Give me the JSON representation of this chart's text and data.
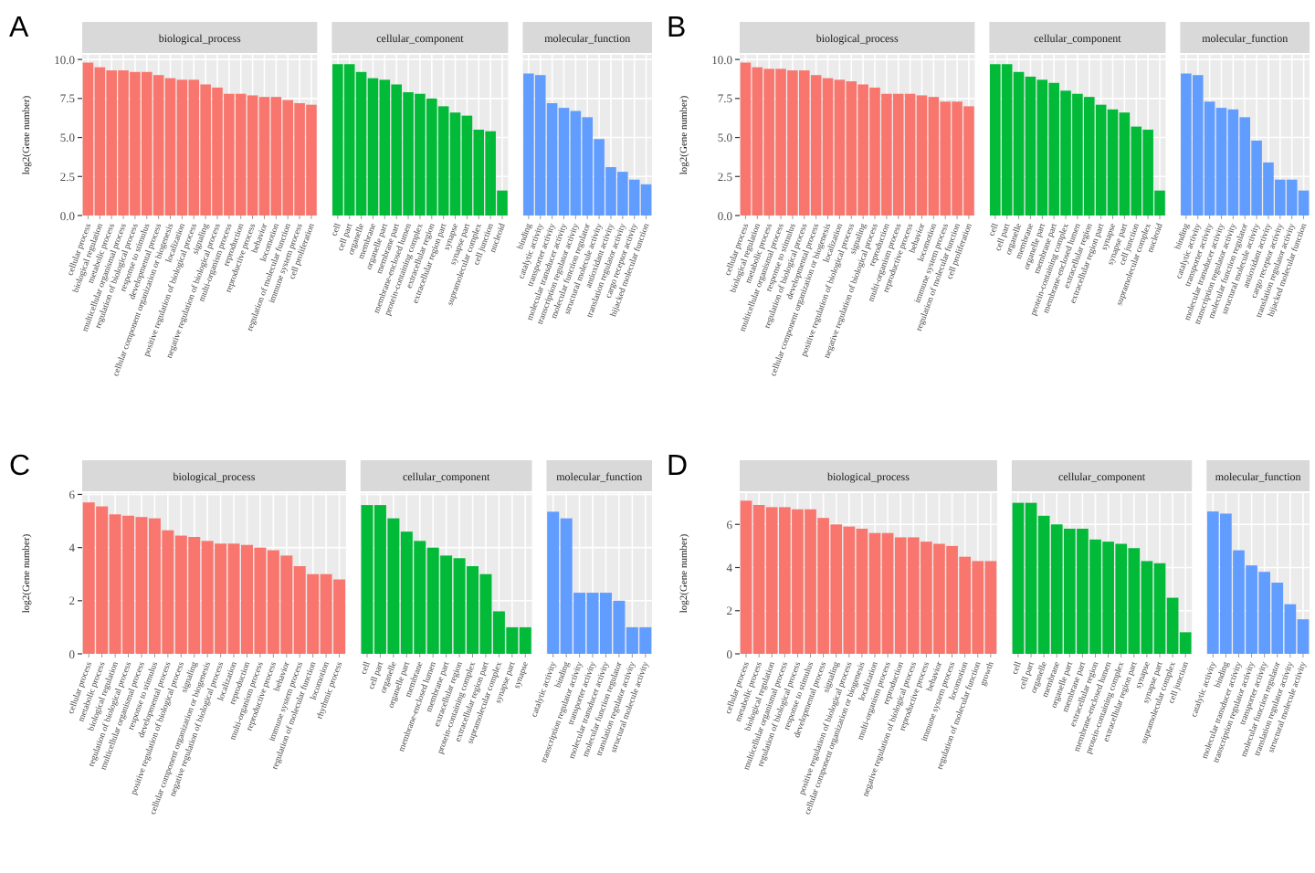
{
  "chart_data": [
    {
      "type": "bar",
      "title": "biological_process",
      "ylabel": "log2(Gene number)",
      "annotations": [
        "A"
      ],
      "color": "#f8766d",
      "grid": true,
      "ylim": [
        0,
        10.3
      ],
      "yticks": [
        {
          "value": 0,
          "label": "0.0"
        },
        {
          "value": 2.5,
          "label": "2.5"
        },
        {
          "value": 5,
          "label": "5.0"
        },
        {
          "value": 7.5,
          "label": "7.5"
        },
        {
          "value": 10,
          "label": "10.0"
        }
      ],
      "categories": [
        "cellular process",
        "biological regulation",
        "metabolic process",
        "multicellular organismal process",
        "regulation of biological process",
        "response to stimulus",
        "developmental process",
        "cellular component organization or biogenesis",
        "localization",
        "positive regulation of biological process",
        "signaling",
        "negative regulation of biological process",
        "multi-organism process",
        "reproduction",
        "reproductive process",
        "behavior",
        "locomotion",
        "regulation of molecular function",
        "immune system process",
        "cell proliferation"
      ],
      "values": [
        9.8,
        9.5,
        9.3,
        9.3,
        9.2,
        9.2,
        9.0,
        8.8,
        8.7,
        8.7,
        8.4,
        8.2,
        7.8,
        7.8,
        7.7,
        7.6,
        7.6,
        7.4,
        7.2,
        7.1
      ]
    },
    {
      "type": "bar",
      "title": "cellular_component",
      "color": "#00ba38",
      "grid": true,
      "tick_labels": "x",
      "ylim": [
        0,
        10.3
      ],
      "yticks": [
        0,
        2.5,
        5,
        7.5,
        10
      ],
      "categories": [
        "cell",
        "cell part",
        "organelle",
        "membrane",
        "organelle part",
        "membrane part",
        "membrane-enclosed lumen",
        "protein-containing complex",
        "extracellular region",
        "extracellular region part",
        "synapse",
        "synapse part",
        "supramolecular complex",
        "cell junction",
        "nucleoid"
      ],
      "values": [
        9.7,
        9.7,
        9.2,
        8.8,
        8.7,
        8.4,
        7.9,
        7.8,
        7.5,
        7.0,
        6.6,
        6.4,
        5.5,
        5.4,
        1.6
      ]
    },
    {
      "type": "bar",
      "title": "molecular_function",
      "color": "#619cff",
      "grid": true,
      "tick_labels": "x",
      "ylim": [
        0,
        10.3
      ],
      "yticks": [
        0,
        2.5,
        5,
        7.5,
        10
      ],
      "categories": [
        "binding",
        "catalytic activity",
        "transporter activity",
        "molecular transducer activity",
        "transcription regulator activity",
        "molecular function regulator",
        "structural molecule activity",
        "antioxidant activity",
        "translation regulator activity",
        "cargo receptor activity",
        "hijacked molecular function"
      ],
      "values": [
        9.1,
        9.0,
        7.2,
        6.9,
        6.7,
        6.3,
        4.9,
        3.1,
        2.8,
        2.3,
        2.0
      ]
    },
    {
      "type": "bar",
      "title": "biological_process",
      "ylabel": "log2(Gene number)",
      "annotations": [
        "B"
      ],
      "color": "#f8766d",
      "grid": true,
      "ylim": [
        0,
        10.3
      ],
      "yticks": [
        {
          "value": 0,
          "label": "0.0"
        },
        {
          "value": 2.5,
          "label": "2.5"
        },
        {
          "value": 5,
          "label": "5.0"
        },
        {
          "value": 7.5,
          "label": "7.5"
        },
        {
          "value": 10,
          "label": "10.0"
        }
      ],
      "categories": [
        "cellular process",
        "biological regulation",
        "metabolic process",
        "multicellular organismal process",
        "response to stimulus",
        "regulation of biological process",
        "developmental process",
        "cellular component organization or biogenesis",
        "localization",
        "positive regulation of biological process",
        "signaling",
        "negative regulation of biological process",
        "reproduction",
        "multi-organism process",
        "reproductive process",
        "behavior",
        "locomotion",
        "immune system process",
        "regulation of molecular function",
        "cell proliferation"
      ],
      "values": [
        9.8,
        9.5,
        9.4,
        9.4,
        9.3,
        9.3,
        9.0,
        8.8,
        8.7,
        8.6,
        8.4,
        8.2,
        7.8,
        7.8,
        7.8,
        7.7,
        7.6,
        7.3,
        7.3,
        7.0
      ]
    },
    {
      "type": "bar",
      "title": "cellular_component",
      "color": "#00ba38",
      "grid": true,
      "tick_labels": "x",
      "ylim": [
        0,
        10.3
      ],
      "yticks": [
        0,
        2.5,
        5,
        7.5,
        10
      ],
      "categories": [
        "cell",
        "cell part",
        "organelle",
        "membrane",
        "organelle part",
        "membrane part",
        "protein-containing complex",
        "membrane-enclosed lumen",
        "extracellular region",
        "extracellular region part",
        "synapse",
        "synapse part",
        "cell junction",
        "supramolecular complex",
        "nucleoid"
      ],
      "values": [
        9.7,
        9.7,
        9.2,
        8.9,
        8.7,
        8.5,
        8.0,
        7.8,
        7.6,
        7.1,
        6.8,
        6.6,
        5.7,
        5.5,
        1.6
      ]
    },
    {
      "type": "bar",
      "title": "molecular_function",
      "color": "#619cff",
      "grid": true,
      "tick_labels": "x",
      "ylim": [
        0,
        10.3
      ],
      "yticks": [
        0,
        2.5,
        5,
        7.5,
        10
      ],
      "categories": [
        "binding",
        "catalytic activity",
        "transporter activity",
        "molecular transducer activity",
        "transcription regulator activity",
        "molecular function regulator",
        "structural molecule activity",
        "antioxidant activity",
        "cargo receptor activity",
        "translation regulator activity",
        "hijacked molecular function"
      ],
      "values": [
        9.1,
        9.0,
        7.3,
        6.9,
        6.8,
        6.3,
        4.8,
        3.4,
        2.3,
        2.3,
        1.6
      ]
    },
    {
      "type": "bar",
      "title": "biological_process",
      "ylabel": "log2(Gene number)",
      "annotations": [
        "C"
      ],
      "color": "#f8766d",
      "grid": true,
      "ylim": [
        0,
        6.05
      ],
      "yticks": [
        0,
        2,
        4,
        6
      ],
      "categories": [
        "cellular process",
        "metabolic process",
        "biological regulation",
        "regulation of biological process",
        "multicellular organismal process",
        "response to stimulus",
        "developmental process",
        "positive regulation of biological process",
        "signaling",
        "cellular component organization or biogenesis",
        "negative regulation of biological process",
        "localization",
        "reproduction",
        "multi-organism process",
        "reproductive process",
        "behavior",
        "immune system process",
        "regulation of molecular function",
        "locomotion",
        "rhythmic process"
      ],
      "values": [
        5.7,
        5.55,
        5.25,
        5.2,
        5.15,
        5.1,
        4.65,
        4.45,
        4.4,
        4.25,
        4.15,
        4.15,
        4.1,
        4.0,
        3.9,
        3.7,
        3.3,
        3.0,
        3.0,
        2.8
      ]
    },
    {
      "type": "bar",
      "title": "cellular_component",
      "color": "#00ba38",
      "grid": true,
      "tick_labels": "x",
      "ylim": [
        0,
        6.05
      ],
      "yticks": [
        0,
        2,
        4,
        6
      ],
      "categories": [
        "cell",
        "cell part",
        "organelle",
        "organelle part",
        "membrane",
        "membrane-enclosed lumen",
        "membrane part",
        "extracellular region",
        "protein-containing complex",
        "extracellular region part",
        "supramolecular complex",
        "synapse part",
        "synapse"
      ],
      "values": [
        5.6,
        5.6,
        5.1,
        4.6,
        4.25,
        4.0,
        3.7,
        3.6,
        3.3,
        3.0,
        1.6,
        1.0,
        1.0
      ]
    },
    {
      "type": "bar",
      "title": "molecular_function",
      "color": "#619cff",
      "grid": true,
      "tick_labels": "x",
      "ylim": [
        0,
        6.05
      ],
      "yticks": [
        0,
        2,
        4,
        6
      ],
      "categories": [
        "catalytic activity",
        "binding",
        "transcription regulator activity",
        "transporter activity",
        "molecular transducer activity",
        "molecular function regulator",
        "translation regulator activity",
        "structural molecule activity"
      ],
      "values": [
        5.35,
        5.1,
        2.3,
        2.3,
        2.3,
        2.0,
        1.0,
        1.0
      ]
    },
    {
      "type": "bar",
      "title": "biological_process",
      "ylabel": "log2(Gene number)",
      "annotations": [
        "D"
      ],
      "color": "#f8766d",
      "grid": true,
      "ylim": [
        0,
        7.45
      ],
      "yticks": [
        0,
        2,
        4,
        6
      ],
      "categories": [
        "cellular process",
        "metabolic process",
        "biological regulation",
        "multicellular organismal process",
        "regulation of biological process",
        "response to stimulus",
        "developmental process",
        "signaling",
        "positive regulation of biological process",
        "cellular component organization or biogenesis",
        "localization",
        "multi-organism process",
        "reproduction",
        "negative regulation of biological process",
        "reproductive process",
        "behavior",
        "immune system process",
        "locomotion",
        "regulation of molecular function",
        "growth"
      ],
      "values": [
        7.1,
        6.9,
        6.8,
        6.8,
        6.7,
        6.7,
        6.3,
        6.0,
        5.9,
        5.8,
        5.6,
        5.6,
        5.4,
        5.4,
        5.2,
        5.1,
        5.0,
        4.5,
        4.3,
        4.3
      ]
    },
    {
      "type": "bar",
      "title": "cellular_component",
      "color": "#00ba38",
      "grid": true,
      "tick_labels": "x",
      "ylim": [
        0,
        7.45
      ],
      "yticks": [
        0,
        2,
        4,
        6
      ],
      "categories": [
        "cell",
        "cell part",
        "organelle",
        "membrane",
        "organelle part",
        "membrane part",
        "extracellular region",
        "membrane-enclosed lumen",
        "protein-containing complex",
        "extracellular region part",
        "synapse",
        "synapse part",
        "supramolecular complex",
        "cell junction"
      ],
      "values": [
        7.0,
        7.0,
        6.4,
        6.0,
        5.8,
        5.8,
        5.3,
        5.2,
        5.1,
        4.9,
        4.3,
        4.2,
        2.6,
        1.0
      ]
    },
    {
      "type": "bar",
      "title": "molecular_function",
      "color": "#619cff",
      "grid": true,
      "tick_labels": "x",
      "ylim": [
        0,
        7.45
      ],
      "yticks": [
        0,
        2,
        4,
        6
      ],
      "categories": [
        "catalytic activity",
        "binding",
        "molecular transducer activity",
        "transcription regulator activity",
        "transporter activity",
        "molecular function regulator",
        "translation regulator activity",
        "structural molecule activity"
      ],
      "values": [
        6.6,
        6.5,
        4.8,
        4.1,
        3.8,
        3.3,
        2.3,
        1.6
      ]
    }
  ]
}
